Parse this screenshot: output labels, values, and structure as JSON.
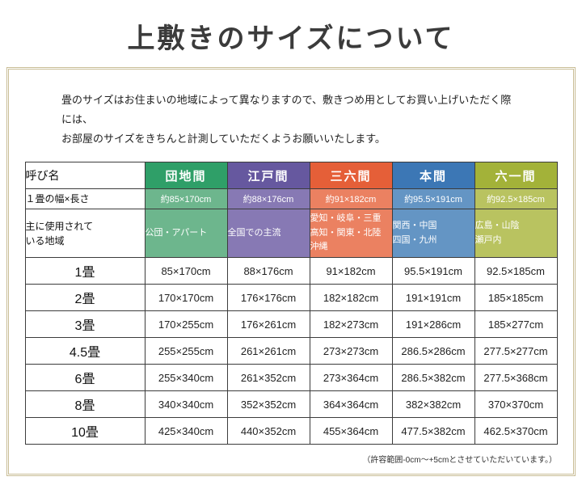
{
  "title": "上敷きのサイズについて",
  "intro": {
    "line1": "畳のサイズはお住まいの地域によって異なりますので、敷きつめ用としてお買い上げいただく際には、",
    "line2": "お部屋のサイズをきちんと計測していただくようお願いいたします。"
  },
  "table": {
    "corner_label": "呼び名",
    "size_row_label": "１畳の幅×長さ",
    "region_row_label": "主に使用されて\nいる地域",
    "columns": [
      {
        "name": "団地間",
        "size": "約85×170cm",
        "region": "公団・アパート",
        "header_color": "#2f9f68",
        "sub_color": "#6db68d"
      },
      {
        "name": "江戸間",
        "size": "約88×176cm",
        "region": "全国での主流",
        "header_color": "#66589f",
        "sub_color": "#8779b4"
      },
      {
        "name": "三六間",
        "size": "約91×182cm",
        "region": "愛知・岐阜・三重\n高知・関東・北陸\n沖縄",
        "header_color": "#e55f38",
        "sub_color": "#eb8161"
      },
      {
        "name": "本間",
        "size": "約95.5×191cm",
        "region": "関西・中国\n四国・九州",
        "header_color": "#3c77b5",
        "sub_color": "#6495c4"
      },
      {
        "name": "六一間",
        "size": "約92.5×185cm",
        "region": "広島・山陰\n瀬戸内",
        "header_color": "#a3b239",
        "sub_color": "#b9c360"
      }
    ],
    "rows": [
      {
        "label": "1畳",
        "values": [
          "85×170cm",
          "88×176cm",
          "91×182cm",
          "95.5×191cm",
          "92.5×185cm"
        ]
      },
      {
        "label": "2畳",
        "values": [
          "170×170cm",
          "176×176cm",
          "182×182cm",
          "191×191cm",
          "185×185cm"
        ]
      },
      {
        "label": "3畳",
        "values": [
          "170×255cm",
          "176×261cm",
          "182×273cm",
          "191×286cm",
          "185×277cm"
        ]
      },
      {
        "label": "4.5畳",
        "values": [
          "255×255cm",
          "261×261cm",
          "273×273cm",
          "286.5×286cm",
          "277.5×277cm"
        ]
      },
      {
        "label": "6畳",
        "values": [
          "255×340cm",
          "261×352cm",
          "273×364cm",
          "286.5×382cm",
          "277.5×368cm"
        ]
      },
      {
        "label": "8畳",
        "values": [
          "340×340cm",
          "352×352cm",
          "364×364cm",
          "382×382cm",
          "370×370cm"
        ]
      },
      {
        "label": "10畳",
        "values": [
          "425×340cm",
          "440×352cm",
          "455×364cm",
          "477.5×382cm",
          "462.5×370cm"
        ]
      }
    ]
  },
  "footnote": "（許容範囲-0cm～+5cmとさせていただいています。）"
}
